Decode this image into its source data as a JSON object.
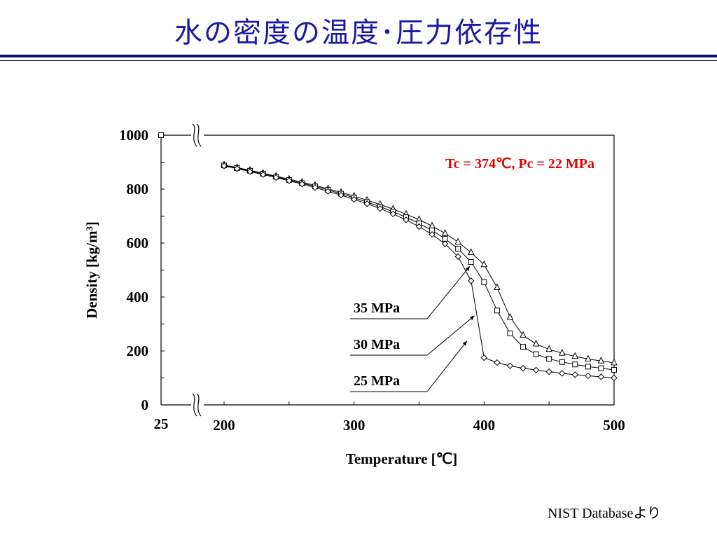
{
  "slide": {
    "title": "水の密度の温度･圧力依存性",
    "source_note": "NIST Databaseより",
    "title_color": "#1a1aa6"
  },
  "chart_data": {
    "type": "line",
    "xlabel": "Temperature [℃]",
    "ylabel": "Density [kg/m³]",
    "x_ticks": [
      "25",
      "200",
      "300",
      "400",
      "500"
    ],
    "y_ticks": [
      "0",
      "200",
      "400",
      "600",
      "800",
      "1000"
    ],
    "xlim": [
      200,
      500
    ],
    "ylim": [
      0,
      1000
    ],
    "x_axis_break": true,
    "y_axis_break": true,
    "grid": false,
    "annotation": "Tc = 374℃,  Pc = 22 MPa",
    "annotation_color": "#e00000",
    "x": [
      200,
      210,
      220,
      230,
      240,
      250,
      260,
      270,
      280,
      290,
      300,
      310,
      320,
      330,
      340,
      350,
      360,
      370,
      380,
      390,
      400,
      410,
      420,
      430,
      440,
      450,
      460,
      470,
      480,
      490,
      500
    ],
    "extra_points": [
      {
        "x": 25,
        "y": 1000,
        "marker": "square"
      }
    ],
    "series": [
      {
        "name": "35 MPa",
        "marker": "triangle",
        "values": [
          890,
          880,
          870,
          859,
          848,
          837,
          826,
          814,
          801,
          788,
          774,
          759,
          743,
          726,
          707,
          687,
          663,
          636,
          604,
          565,
          520,
          435,
          325,
          258,
          226,
          206,
          192,
          180,
          170,
          163,
          156
        ]
      },
      {
        "name": "30 MPa",
        "marker": "square",
        "values": [
          888,
          878,
          868,
          857,
          846,
          834,
          822,
          810,
          797,
          783,
          768,
          752,
          735,
          716,
          696,
          673,
          647,
          616,
          579,
          530,
          455,
          350,
          265,
          215,
          188,
          171,
          159,
          150,
          142,
          136,
          130
        ]
      },
      {
        "name": "25 MPa",
        "marker": "diamond",
        "values": [
          886,
          876,
          865,
          854,
          843,
          831,
          819,
          806,
          792,
          778,
          762,
          746,
          728,
          708,
          686,
          661,
          632,
          597,
          550,
          460,
          175,
          157,
          145,
          136,
          129,
          123,
          117,
          112,
          108,
          104,
          100
        ]
      }
    ],
    "series_labels": [
      "35 MPa",
      "30 MPa",
      "25 MPa"
    ]
  }
}
